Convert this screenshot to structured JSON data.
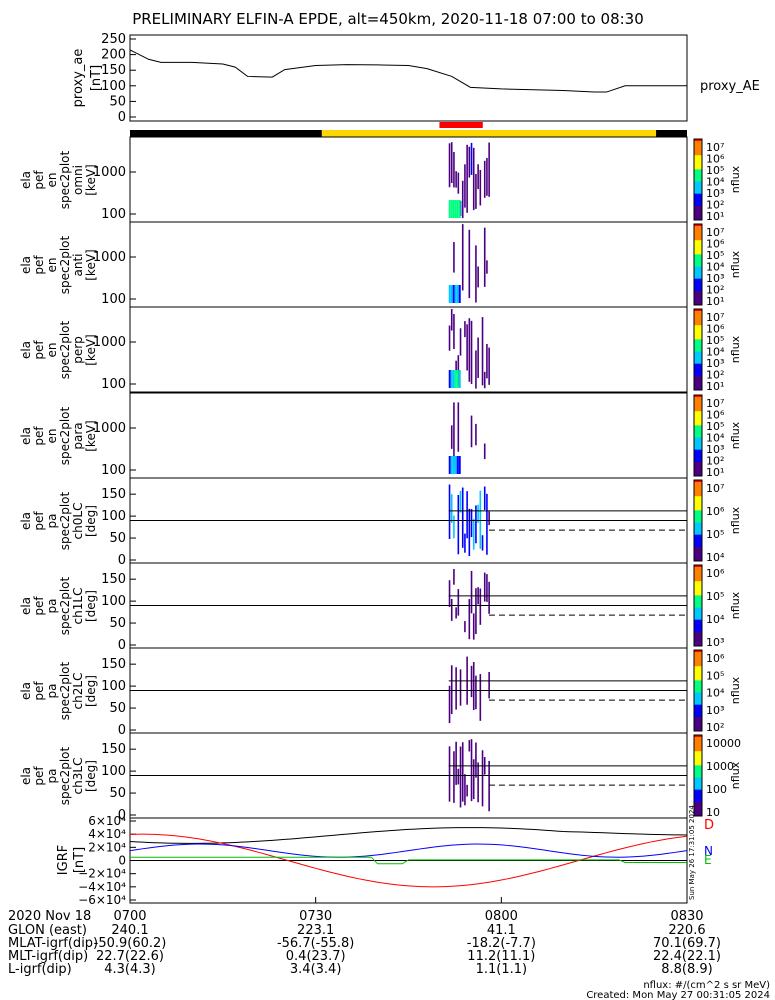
{
  "chart_data": {
    "type": "heatmap",
    "title": "PRELIMINARY ELFIN-A EPDE, alt=450km, 2020-11-18 07:00 to 08:30",
    "panels": {
      "ae": {
        "ylabel": [
          "proxy_ae",
          "[nT]"
        ],
        "yticks": [
          "250",
          "200",
          "150",
          "100",
          "50",
          "0"
        ],
        "legend": "proxy_AE",
        "series": [
          {
            "t": "07:00",
            "v": 215
          },
          {
            "t": "07:03",
            "v": 185
          },
          {
            "t": "07:05",
            "v": 175
          },
          {
            "t": "07:10",
            "v": 175
          },
          {
            "t": "07:15",
            "v": 170
          },
          {
            "t": "07:17",
            "v": 160
          },
          {
            "t": "07:19",
            "v": 130
          },
          {
            "t": "07:23",
            "v": 128
          },
          {
            "t": "07:25",
            "v": 152
          },
          {
            "t": "07:30",
            "v": 165
          },
          {
            "t": "07:35",
            "v": 168
          },
          {
            "t": "07:40",
            "v": 167
          },
          {
            "t": "07:45",
            "v": 165
          },
          {
            "t": "07:48",
            "v": 155
          },
          {
            "t": "07:52",
            "v": 130
          },
          {
            "t": "07:55",
            "v": 95
          },
          {
            "t": "08:00",
            "v": 90
          },
          {
            "t": "08:10",
            "v": 85
          },
          {
            "t": "08:15",
            "v": 80
          },
          {
            "t": "08:17",
            "v": 80
          },
          {
            "t": "08:20",
            "v": 100
          },
          {
            "t": "08:30",
            "v": 100
          }
        ]
      },
      "spec": [
        {
          "ylabel": [
            "ela",
            "pef",
            "en",
            "spec2plot",
            "omni",
            "[keV]"
          ],
          "yticks": [
            "1000",
            "100"
          ],
          "cbar": [
            "10⁷",
            "10⁶",
            "10⁵",
            "10⁴",
            "10³",
            "10²",
            "10¹"
          ],
          "cbar_label": "nflux"
        },
        {
          "ylabel": [
            "ela",
            "pef",
            "en",
            "spec2plot",
            "anti",
            "[keV]"
          ],
          "yticks": [
            "1000",
            "100"
          ],
          "cbar": [
            "10⁷",
            "10⁶",
            "10⁵",
            "10⁴",
            "10³",
            "10²",
            "10¹"
          ],
          "cbar_label": "nflux"
        },
        {
          "ylabel": [
            "ela",
            "pef",
            "en",
            "spec2plot",
            "perp",
            "[keV]"
          ],
          "yticks": [
            "1000",
            "100"
          ],
          "cbar": [
            "10⁷",
            "10⁶",
            "10⁵",
            "10⁴",
            "10³",
            "10²",
            "10¹"
          ],
          "cbar_label": "nflux"
        },
        {
          "ylabel": [
            "ela",
            "pef",
            "en",
            "spec2plot",
            "para",
            "[keV]"
          ],
          "yticks": [
            "1000",
            "100"
          ],
          "cbar": [
            "10⁷",
            "10⁶",
            "10⁵",
            "10⁴",
            "10³",
            "10²",
            "10¹"
          ],
          "cbar_label": "nflux"
        }
      ],
      "pa": [
        {
          "ylabel": [
            "ela",
            "pef",
            "pa",
            "spec2plot",
            "ch0LC",
            "[deg]"
          ],
          "yticks": [
            "150",
            "100",
            "50",
            "0"
          ],
          "cbar": [
            "10⁷",
            "10⁶",
            "10⁵",
            "10⁴"
          ],
          "cbar_label": "nflux"
        },
        {
          "ylabel": [
            "ela",
            "pef",
            "pa",
            "spec2plot",
            "ch1LC",
            "[deg]"
          ],
          "yticks": [
            "150",
            "100",
            "50",
            "0"
          ],
          "cbar": [
            "10⁶",
            "10⁵",
            "10⁴",
            "10³"
          ],
          "cbar_label": "nflux"
        },
        {
          "ylabel": [
            "ela",
            "pef",
            "pa",
            "spec2plot",
            "ch2LC",
            "[deg]"
          ],
          "yticks": [
            "150",
            "100",
            "50",
            "0"
          ],
          "cbar": [
            "10⁶",
            "10⁵",
            "10⁴",
            "10³",
            "10²"
          ],
          "cbar_label": "nflux"
        },
        {
          "ylabel": [
            "ela",
            "pef",
            "pa",
            "spec2plot",
            "ch3LC",
            "[deg]"
          ],
          "yticks": [
            "150",
            "100",
            "50",
            "0"
          ],
          "cbar": [
            "10000",
            "1000",
            "100",
            "10"
          ],
          "cbar_label": "nflux"
        }
      ],
      "igrf": {
        "ylabel": [
          "IGRF",
          "[nT]"
        ],
        "yticks": [
          "6×10⁴",
          "4×10⁴",
          "2×10⁴",
          "0",
          "−2×10⁴",
          "−4×10⁴",
          "−6×10⁴"
        ],
        "legend": [
          "D",
          "N",
          "E"
        ]
      }
    },
    "time_axis": {
      "header": "2020 Nov 18",
      "ticks": [
        "0700",
        "0730",
        "0800",
        "0830"
      ],
      "rows": [
        {
          "label": "GLON (east)",
          "values": [
            "240.1",
            "223.1",
            "41.1",
            "220.6"
          ]
        },
        {
          "label": "MLAT-igrf(dip)",
          "values": [
            "-50.9(60.2)",
            "-56.7(-55.8)",
            "-18.2(-7.7)",
            "70.1(69.7)"
          ]
        },
        {
          "label": "MLT-igrf(dip)",
          "values": [
            "22.7(22.6)",
            "0.4(23.7)",
            "11.2(11.1)",
            "22.4(22.1)"
          ]
        },
        {
          "label": "L-igrf(dip)",
          "values": [
            "4.3(4.3)",
            "3.4(3.4)",
            "1.1(1.1)",
            "8.8(8.9)"
          ]
        }
      ]
    }
  },
  "footer": {
    "units": "nflux: #/(cm^2 s sr MeV)",
    "created": "Created: Mon May 27 00:31:05 2024",
    "side_stamp": "Sun May 26 17:31:05 2024"
  },
  "colors": {
    "night_bar": "#000000",
    "day_bar": "#ffd700",
    "science_bar": "#ff0000",
    "d_component": "#ff0000",
    "n_component": "#0000ff",
    "e_component": "#00c000",
    "total_field": "#000000"
  }
}
